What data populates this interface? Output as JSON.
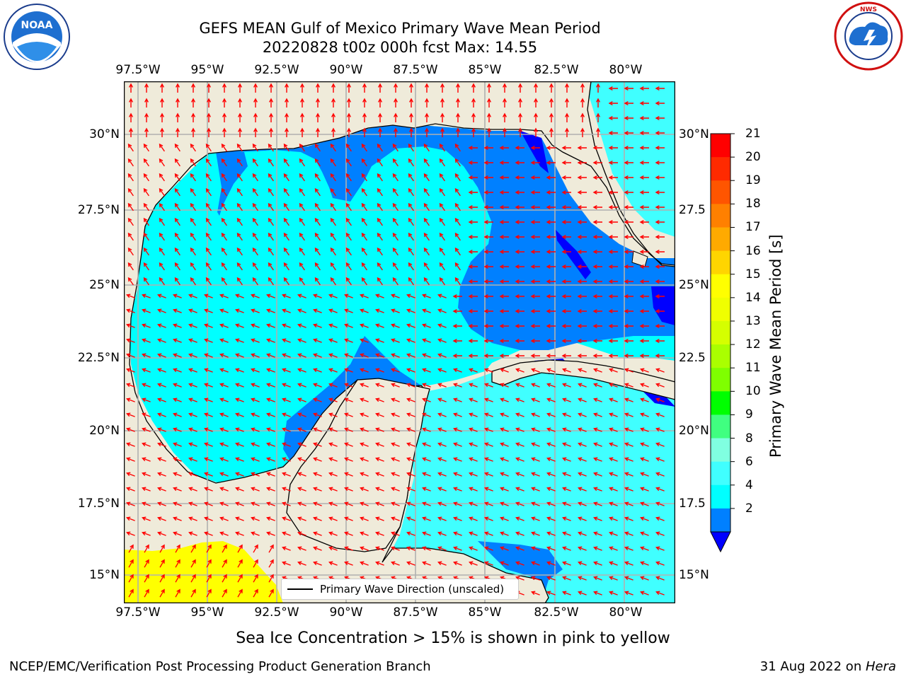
{
  "header": {
    "title_line1": "GEFS MEAN Gulf of Mexico Primary Wave Mean Period",
    "title_line2": "20220828 t00z 000h fcst   Max: 14.55"
  },
  "logos": {
    "left_logo": "NOAA",
    "right_logo": "NATIONAL WEATHER SERVICE"
  },
  "map": {
    "lon_ticks": [
      "97.5°W",
      "95°W",
      "92.5°W",
      "90°W",
      "87.5°W",
      "85°W",
      "82.5°W",
      "80°W"
    ],
    "lat_ticks": [
      "30°N",
      "27.5°N",
      "25°N",
      "22.5°N",
      "20°N",
      "17.5°N",
      "15°N"
    ],
    "lat_ticks_right": [
      "30°N",
      "27.5",
      "25°N",
      "22.5",
      "20°N",
      "17.5",
      "15°N"
    ],
    "legend_label": "Primary Wave Direction (unscaled)",
    "colors": {
      "land": "#efebda",
      "shallow": "#0080ff",
      "light": "#00ffff",
      "pale": "#40ffff",
      "deep": "#0000ff",
      "ice": "#ffff00",
      "arrow": "#ff0000",
      "grid": "#b0b0b0"
    }
  },
  "colorbar": {
    "label": "Primary Wave Mean Period [s]",
    "ticks": [
      "21",
      "20",
      "19",
      "18",
      "17",
      "16",
      "15",
      "14",
      "13",
      "12",
      "11",
      "10",
      "9",
      "8",
      "6",
      "4",
      "2"
    ],
    "colors": [
      "#ff0000",
      "#ff2a00",
      "#ff5500",
      "#ff8000",
      "#ffaa00",
      "#ffd500",
      "#ffff00",
      "#f0ff00",
      "#d5ff00",
      "#aaff00",
      "#7fff00",
      "#00ff00",
      "#40ff80",
      "#80ffe0",
      "#40ffff",
      "#00ffff",
      "#0080ff"
    ],
    "under_color": "#0000ff"
  },
  "caption": "Sea Ice Concentration > 15% is shown in pink to yellow",
  "footer": {
    "left": "NCEP/EMC/Verification Post Processing Product Generation Branch",
    "right_prefix": "31 Aug 2022 on ",
    "right_machine": "Hera"
  }
}
